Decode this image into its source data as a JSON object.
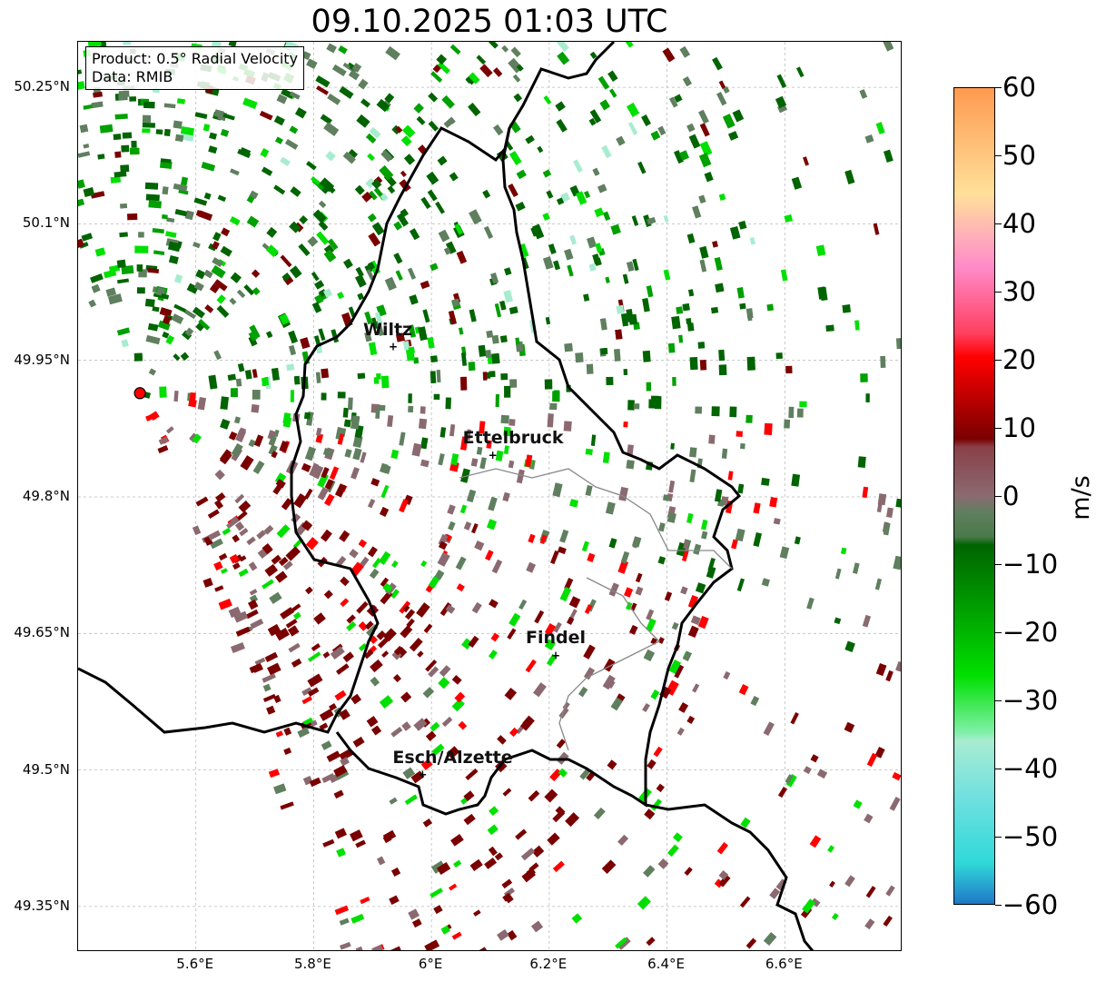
{
  "title": "09.10.2025 01:03 UTC",
  "info": {
    "product": "Product: 0.5° Radial Velocity",
    "data_source": "Data: RMIB"
  },
  "map": {
    "lon_range": [
      5.4,
      6.8
    ],
    "lat_range": [
      49.3,
      50.3
    ],
    "lat_ticks": [
      {
        "value": 50.25,
        "label": "50.25°N"
      },
      {
        "value": 50.1,
        "label": "50.1°N"
      },
      {
        "value": 49.95,
        "label": "49.95°N"
      },
      {
        "value": 49.8,
        "label": "49.8°N"
      },
      {
        "value": 49.65,
        "label": "49.65°N"
      },
      {
        "value": 49.5,
        "label": "49.5°N"
      },
      {
        "value": 49.35,
        "label": "49.35°N"
      }
    ],
    "lon_ticks": [
      {
        "value": 5.6,
        "label": "5.6°E"
      },
      {
        "value": 5.8,
        "label": "5.8°E"
      },
      {
        "value": 6.0,
        "label": "6°E"
      },
      {
        "value": 6.2,
        "label": "6.2°E"
      },
      {
        "value": 6.4,
        "label": "6.4°E"
      },
      {
        "value": 6.6,
        "label": "6.6°E"
      }
    ],
    "radar_site": {
      "lon": 5.505,
      "lat": 49.914
    },
    "cities": [
      {
        "name": "Wiltz",
        "lon": 5.935,
        "lat": 49.966
      },
      {
        "name": "Ettelbruck",
        "lon": 6.104,
        "lat": 49.847
      },
      {
        "name": "Findel",
        "lon": 6.211,
        "lat": 49.627
      },
      {
        "name": "Esch/Alzette",
        "lon": 5.985,
        "lat": 49.496
      }
    ],
    "grid": true
  },
  "colorbar": {
    "label": "m/s",
    "min": -60,
    "max": 60,
    "ticks": [
      {
        "value": 60,
        "label": "60"
      },
      {
        "value": 50,
        "label": "50"
      },
      {
        "value": 40,
        "label": "40"
      },
      {
        "value": 30,
        "label": "30"
      },
      {
        "value": 20,
        "label": "20"
      },
      {
        "value": 10,
        "label": "10"
      },
      {
        "value": 0,
        "label": "0"
      },
      {
        "value": -10,
        "label": "−10"
      },
      {
        "value": -20,
        "label": "−20"
      },
      {
        "value": -30,
        "label": "−30"
      },
      {
        "value": -40,
        "label": "−40"
      },
      {
        "value": -50,
        "label": "−50"
      },
      {
        "value": -60,
        "label": "−60"
      }
    ],
    "colors": {
      "outbound_strong": "#ff9a50",
      "outbound_pale": "#ffe09a",
      "outbound_pink": "#ff8ac8",
      "outbound_red": "#ff0000",
      "outbound_dark": "#7a0000",
      "near_zero_pos": "#8a6a70",
      "near_zero_neg": "#5f7f5f",
      "inbound_dark": "#006400",
      "inbound_bright": "#00e000",
      "inbound_pale": "#a8ecd0",
      "inbound_cyan": "#30d8d8",
      "inbound_blue": "#1f78c8"
    }
  }
}
